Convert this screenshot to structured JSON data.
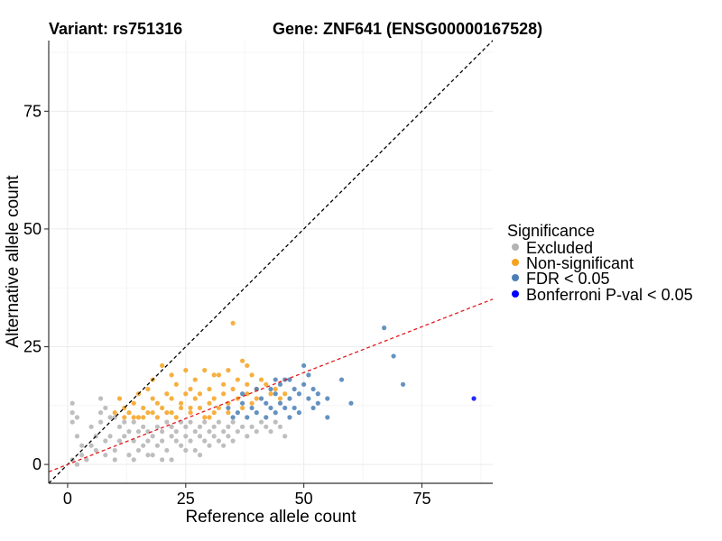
{
  "chart_data": {
    "type": "scatter",
    "title_left": "Variant: rs751316",
    "title_right": "Gene: ZNF641 (ENSG00000167528)",
    "xlabel": "Reference allele count",
    "ylabel": "Alternative allele count",
    "xlim": [
      -4,
      90
    ],
    "ylim": [
      -4,
      90
    ],
    "x_ticks": [
      0,
      25,
      50,
      75
    ],
    "y_ticks": [
      0,
      25,
      50,
      75
    ],
    "x_tick_labels": [
      "0",
      "25",
      "50",
      "75"
    ],
    "y_tick_labels": [
      "0",
      "25",
      "50",
      "75"
    ],
    "grid": true,
    "legend": {
      "title": "Significance",
      "position": "right",
      "entries": [
        {
          "label": "Excluded",
          "color": "#b3b3b3"
        },
        {
          "label": "Non-significant",
          "color": "#f5a21f"
        },
        {
          "label": "FDR < 0.05",
          "color": "#4a7fb5"
        },
        {
          "label": "Bonferroni P-val < 0.05",
          "color": "#0000ff"
        }
      ]
    },
    "reference_lines": [
      {
        "name": "identity",
        "slope": 1,
        "intercept": 0,
        "color": "#000000",
        "dash": "dashed"
      },
      {
        "name": "fit",
        "slope": 0.39,
        "intercept": 0,
        "color": "#e31a1c",
        "dash": "dashed"
      }
    ],
    "series": [
      {
        "name": "Excluded",
        "color": "#b3b3b3",
        "points": [
          [
            1,
            13
          ],
          [
            1,
            11
          ],
          [
            1,
            9
          ],
          [
            2,
            10
          ],
          [
            2,
            6
          ],
          [
            3,
            2
          ],
          [
            3,
            4
          ],
          [
            1,
            1
          ],
          [
            2,
            0
          ],
          [
            4,
            1
          ],
          [
            5,
            8
          ],
          [
            5,
            4
          ],
          [
            6,
            3
          ],
          [
            6,
            6
          ],
          [
            7,
            11
          ],
          [
            7,
            9
          ],
          [
            7,
            14
          ],
          [
            8,
            12
          ],
          [
            8,
            5
          ],
          [
            8,
            2
          ],
          [
            9,
            6
          ],
          [
            9,
            10
          ],
          [
            10,
            10
          ],
          [
            10,
            3
          ],
          [
            11,
            8
          ],
          [
            11,
            5
          ],
          [
            12,
            6
          ],
          [
            12,
            9
          ],
          [
            13,
            2
          ],
          [
            13,
            7
          ],
          [
            14,
            9
          ],
          [
            14,
            5
          ],
          [
            15,
            7
          ],
          [
            15,
            3
          ],
          [
            16,
            8
          ],
          [
            16,
            4
          ],
          [
            17,
            7
          ],
          [
            17,
            5
          ],
          [
            18,
            6
          ],
          [
            18,
            2
          ],
          [
            19,
            8
          ],
          [
            19,
            4
          ],
          [
            20,
            7
          ],
          [
            20,
            5
          ],
          [
            21,
            9
          ],
          [
            21,
            3
          ],
          [
            22,
            6
          ],
          [
            22,
            8
          ],
          [
            23,
            5
          ],
          [
            23,
            7
          ],
          [
            24,
            9
          ],
          [
            24,
            4
          ],
          [
            25,
            6
          ],
          [
            25,
            8
          ],
          [
            26,
            5
          ],
          [
            26,
            9
          ],
          [
            27,
            7
          ],
          [
            27,
            3
          ],
          [
            28,
            6
          ],
          [
            28,
            8
          ],
          [
            29,
            5
          ],
          [
            29,
            9
          ],
          [
            30,
            7
          ],
          [
            30,
            4
          ],
          [
            31,
            6
          ],
          [
            31,
            8
          ],
          [
            32,
            5
          ],
          [
            32,
            9
          ],
          [
            33,
            7
          ],
          [
            33,
            4
          ],
          [
            34,
            8
          ],
          [
            34,
            6
          ],
          [
            35,
            5
          ],
          [
            35,
            9
          ],
          [
            36,
            7
          ],
          [
            37,
            8
          ],
          [
            38,
            6
          ],
          [
            39,
            8
          ],
          [
            40,
            7
          ],
          [
            41,
            9
          ],
          [
            42,
            8
          ],
          [
            43,
            7
          ],
          [
            44,
            9
          ],
          [
            45,
            8
          ],
          [
            46,
            6
          ],
          [
            17,
            2
          ],
          [
            20,
            1
          ],
          [
            25,
            3
          ],
          [
            28,
            2
          ],
          [
            22,
            1
          ],
          [
            10,
            1
          ],
          [
            14,
            1
          ]
        ]
      },
      {
        "name": "Non-significant",
        "color": "#f5a21f",
        "points": [
          [
            10,
            11
          ],
          [
            11,
            14
          ],
          [
            12,
            12
          ],
          [
            13,
            11
          ],
          [
            14,
            13
          ],
          [
            15,
            10
          ],
          [
            15,
            15
          ],
          [
            16,
            12
          ],
          [
            17,
            11
          ],
          [
            17,
            16
          ],
          [
            18,
            14
          ],
          [
            18,
            18
          ],
          [
            19,
            10
          ],
          [
            19,
            13
          ],
          [
            20,
            12
          ],
          [
            20,
            21
          ],
          [
            21,
            15
          ],
          [
            21,
            11
          ],
          [
            22,
            19
          ],
          [
            22,
            14
          ],
          [
            23,
            10
          ],
          [
            23,
            17
          ],
          [
            24,
            13
          ],
          [
            24,
            12
          ],
          [
            25,
            20
          ],
          [
            25,
            15
          ],
          [
            26,
            11
          ],
          [
            26,
            16
          ],
          [
            27,
            14
          ],
          [
            27,
            18
          ],
          [
            28,
            12
          ],
          [
            28,
            15
          ],
          [
            29,
            10
          ],
          [
            29,
            20
          ],
          [
            30,
            13
          ],
          [
            30,
            16
          ],
          [
            31,
            11
          ],
          [
            31,
            14
          ],
          [
            32,
            19
          ],
          [
            32,
            12
          ],
          [
            33,
            15
          ],
          [
            33,
            17
          ],
          [
            34,
            13
          ],
          [
            34,
            11
          ],
          [
            35,
            30
          ],
          [
            35,
            16
          ],
          [
            36,
            18
          ],
          [
            36,
            14
          ],
          [
            37,
            22
          ],
          [
            37,
            12
          ],
          [
            38,
            17
          ],
          [
            38,
            15
          ],
          [
            39,
            13
          ],
          [
            39,
            19
          ],
          [
            40,
            16
          ],
          [
            40,
            14
          ],
          [
            41,
            18
          ],
          [
            42,
            17
          ],
          [
            43,
            15
          ],
          [
            44,
            16
          ],
          [
            45,
            14
          ],
          [
            46,
            15
          ],
          [
            14,
            10
          ],
          [
            16,
            10
          ],
          [
            12,
            10
          ],
          [
            18,
            11
          ],
          [
            22,
            11
          ],
          [
            26,
            12
          ],
          [
            30,
            10
          ],
          [
            31,
            19
          ],
          [
            34,
            20
          ],
          [
            38,
            21
          ]
        ]
      },
      {
        "name": "FDR < 0.05",
        "color": "#4a7fb5",
        "points": [
          [
            34,
            12
          ],
          [
            35,
            10
          ],
          [
            36,
            11
          ],
          [
            37,
            13
          ],
          [
            38,
            10
          ],
          [
            39,
            12
          ],
          [
            40,
            11
          ],
          [
            41,
            14
          ],
          [
            42,
            13
          ],
          [
            42,
            10
          ],
          [
            43,
            16
          ],
          [
            43,
            12
          ],
          [
            44,
            15
          ],
          [
            44,
            11
          ],
          [
            45,
            17
          ],
          [
            45,
            13
          ],
          [
            46,
            18
          ],
          [
            46,
            12
          ],
          [
            47,
            14
          ],
          [
            47,
            10
          ],
          [
            48,
            16
          ],
          [
            48,
            12
          ],
          [
            49,
            15
          ],
          [
            49,
            11
          ],
          [
            50,
            21
          ],
          [
            50,
            17
          ],
          [
            51,
            14
          ],
          [
            51,
            19
          ],
          [
            52,
            12
          ],
          [
            52,
            16
          ],
          [
            53,
            13
          ],
          [
            53,
            15
          ],
          [
            55,
            10
          ],
          [
            55,
            14
          ],
          [
            58,
            18
          ],
          [
            60,
            13
          ],
          [
            67,
            29
          ],
          [
            69,
            23
          ],
          [
            71,
            17
          ],
          [
            37,
            15
          ],
          [
            40,
            16
          ],
          [
            44,
            18
          ],
          [
            47,
            18
          ]
        ]
      },
      {
        "name": "Bonferroni P-val < 0.05",
        "color": "#0000ff",
        "points": [
          [
            86,
            14
          ]
        ]
      }
    ]
  }
}
